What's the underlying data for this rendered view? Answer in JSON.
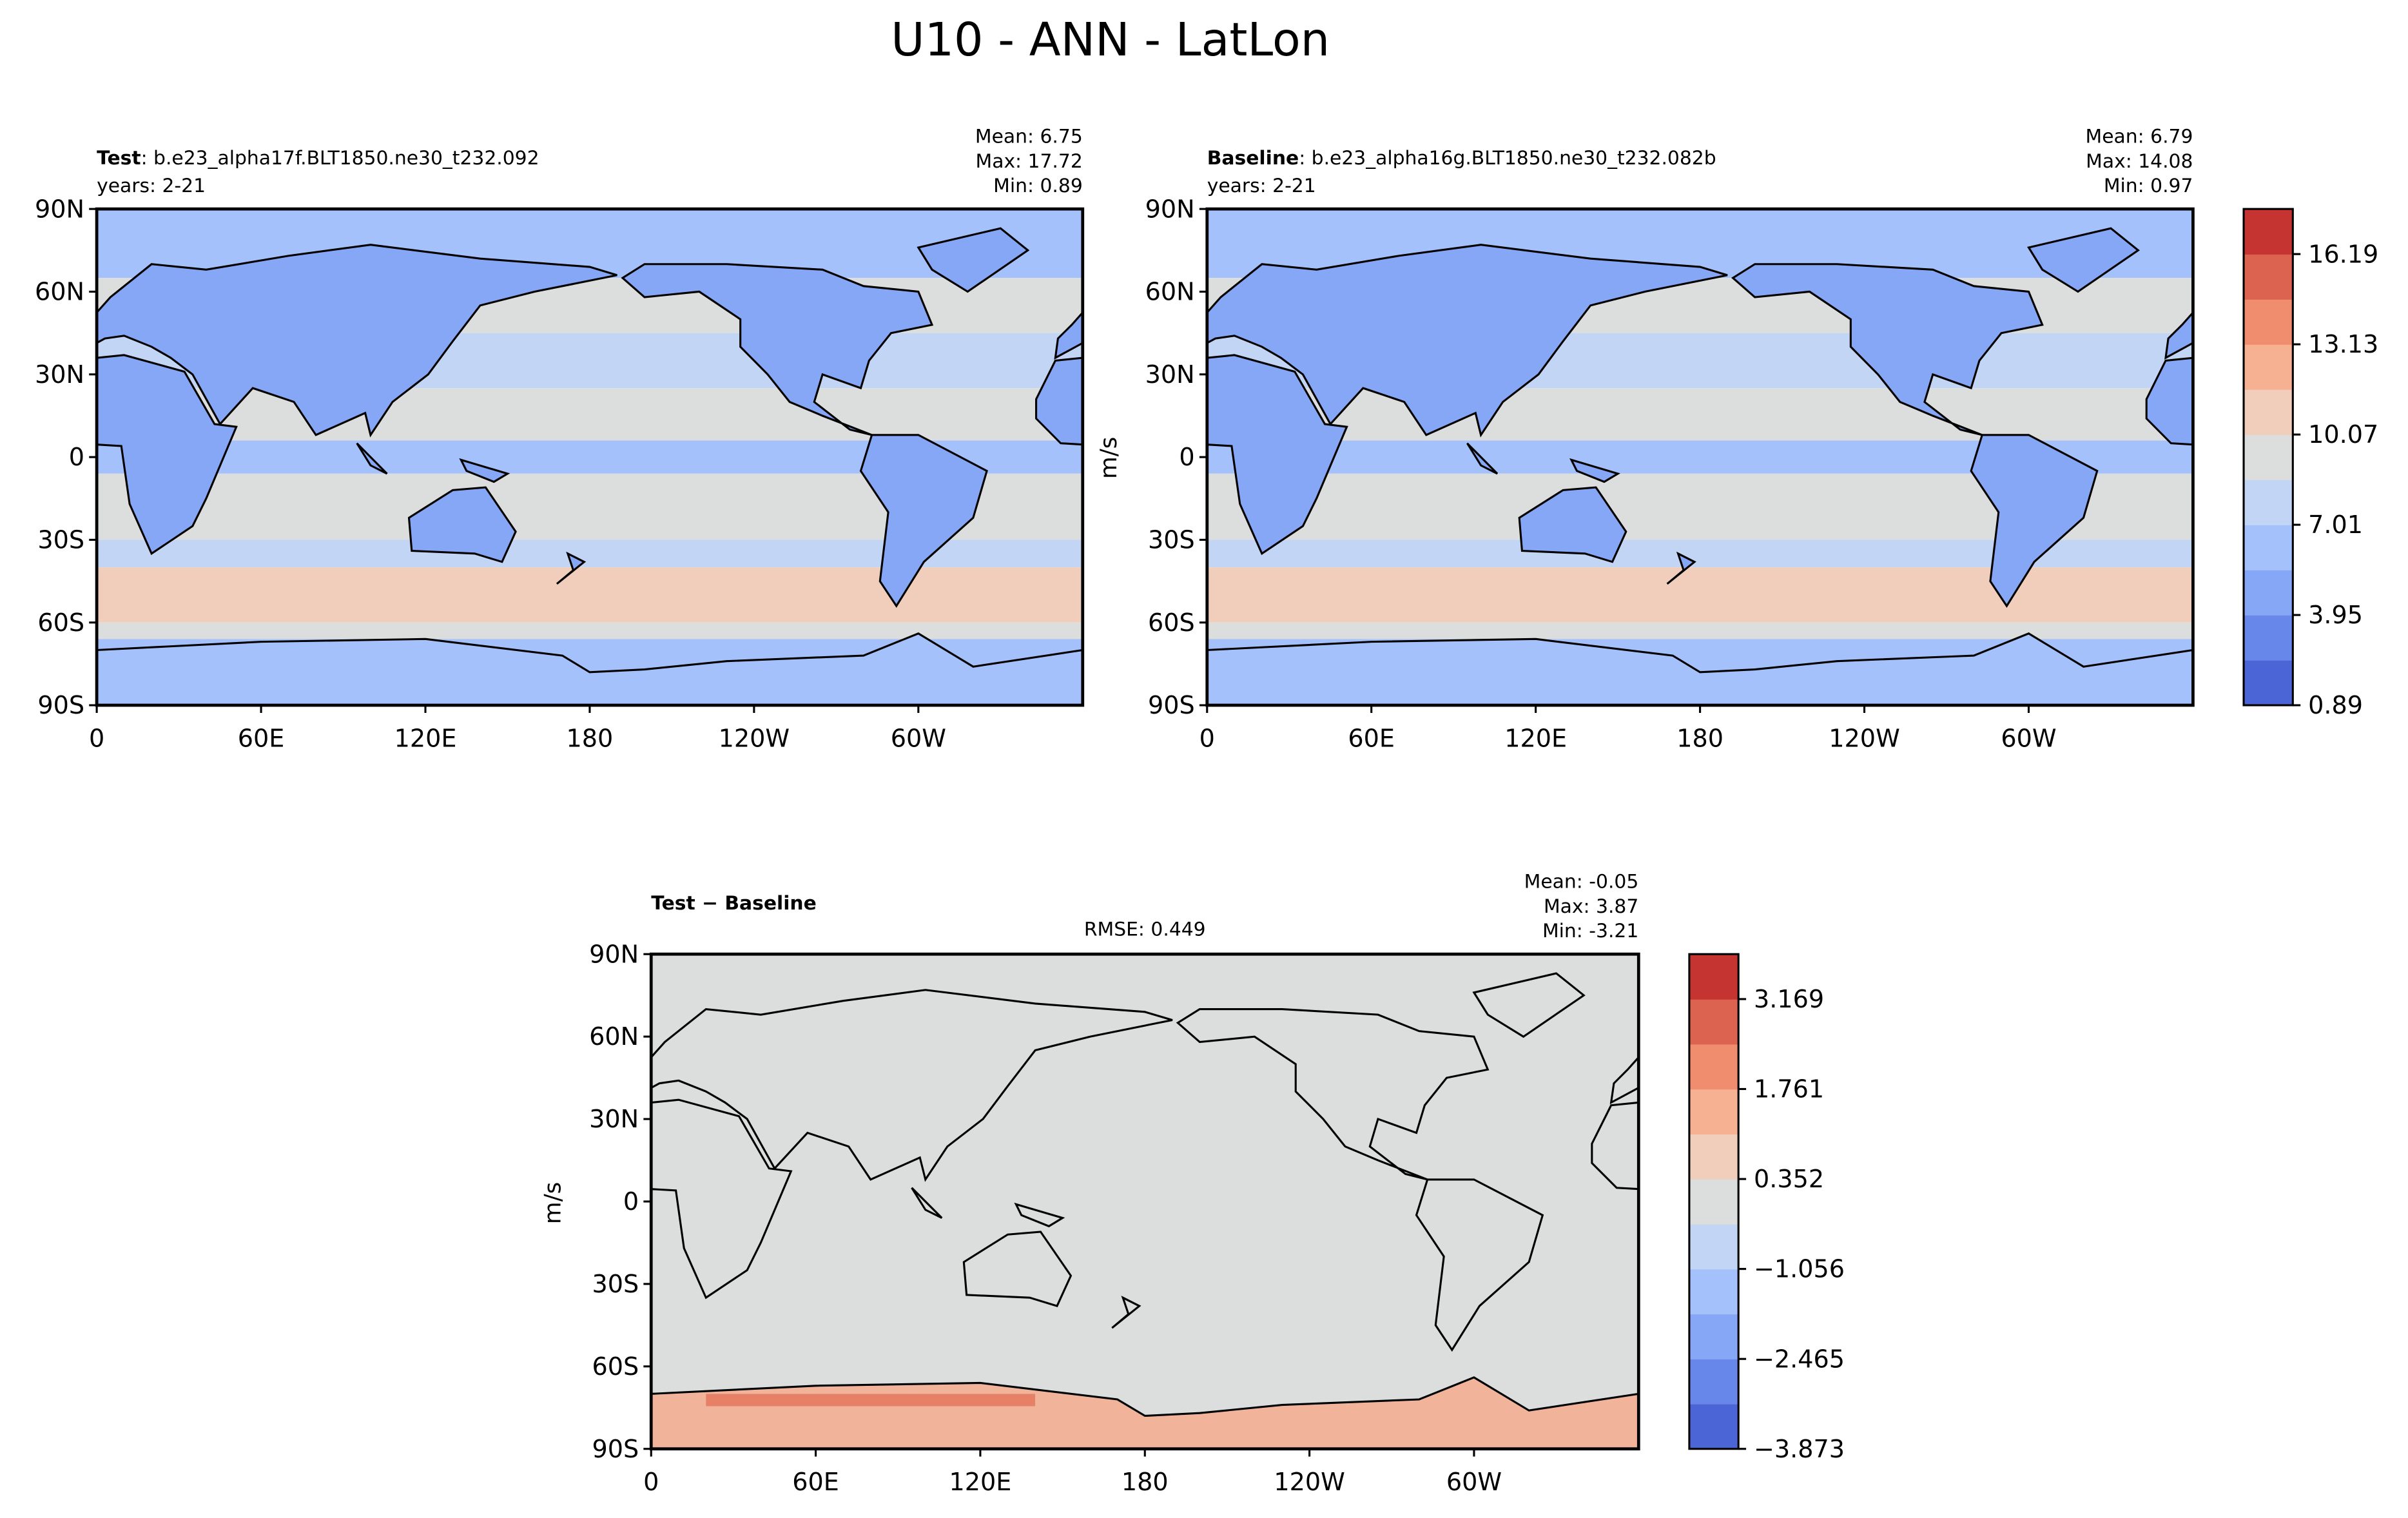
{
  "title": "U10 - ANN - LatLon",
  "xlim": [
    0,
    360
  ],
  "ylim": [
    -90,
    90
  ],
  "lat_ticks": [
    {
      "value": 90,
      "label": "90N"
    },
    {
      "value": 60,
      "label": "60N"
    },
    {
      "value": 30,
      "label": "30N"
    },
    {
      "value": 0,
      "label": "0"
    },
    {
      "value": -30,
      "label": "30S"
    },
    {
      "value": -60,
      "label": "60S"
    },
    {
      "value": -90,
      "label": "90S"
    }
  ],
  "lon_ticks": [
    {
      "value": 0,
      "label": "0"
    },
    {
      "value": 60,
      "label": "60E"
    },
    {
      "value": 120,
      "label": "120E"
    },
    {
      "value": 180,
      "label": "180"
    },
    {
      "value": 240,
      "label": "120W"
    },
    {
      "value": 300,
      "label": "60W"
    }
  ],
  "panels": [
    {
      "label": "Test",
      "name": ": b.e23_alpha17f.BLT1850.ne30_t232.092",
      "years": "years: 2-21",
      "stats": [
        {
          "label": "Mean:",
          "value": 6.75
        },
        {
          "label": "Max:",
          "value": 17.72
        },
        {
          "label": "Min:",
          "value": 0.89
        }
      ]
    },
    {
      "label": "Baseline",
      "name": ": b.e23_alpha16g.BLT1850.ne30_t232.082b",
      "years": "years: 2-21",
      "stats": [
        {
          "label": "Mean:",
          "value": 6.79
        },
        {
          "label": "Max:",
          "value": 14.08
        },
        {
          "label": "Min:",
          "value": 0.97
        }
      ]
    },
    {
      "label": "Test − Baseline",
      "rmse": {
        "label": "RMSE:",
        "value": 0.449
      },
      "stats": [
        {
          "label": "Mean:",
          "value": -0.05
        },
        {
          "label": "Max:",
          "value": 3.87
        },
        {
          "label": "Min:",
          "value": -3.21
        }
      ]
    }
  ],
  "colorbars": [
    {
      "label": "m/s",
      "lim": [
        0.89,
        17.72
      ],
      "ticks": [
        0.89,
        3.95,
        7.01,
        10.07,
        13.13,
        16.19
      ],
      "colors": [
        "#4b65d6",
        "#6787ea",
        "#86a6f6",
        "#a5c1fc",
        "#c3d5f4",
        "#dcdddd",
        "#f1cdbb",
        "#f6b193",
        "#ef8d6e",
        "#dc634f",
        "#c53430"
      ]
    },
    {
      "label": "m/s",
      "lim": [
        -3.873,
        3.873
      ],
      "ticks": [
        {
          "value": -3.873,
          "label": "−3.873"
        },
        {
          "value": -2.465,
          "label": "−2.465"
        },
        {
          "value": -1.056,
          "label": "−1.056"
        },
        0.352,
        1.761,
        3.169
      ],
      "colors": [
        "#4b65d6",
        "#6787ea",
        "#86a6f6",
        "#a5c1fc",
        "#c3d5f4",
        "#dcdddd",
        "#f1cdbb",
        "#f6b193",
        "#ef8d6e",
        "#dc634f",
        "#c53430"
      ]
    }
  ]
}
